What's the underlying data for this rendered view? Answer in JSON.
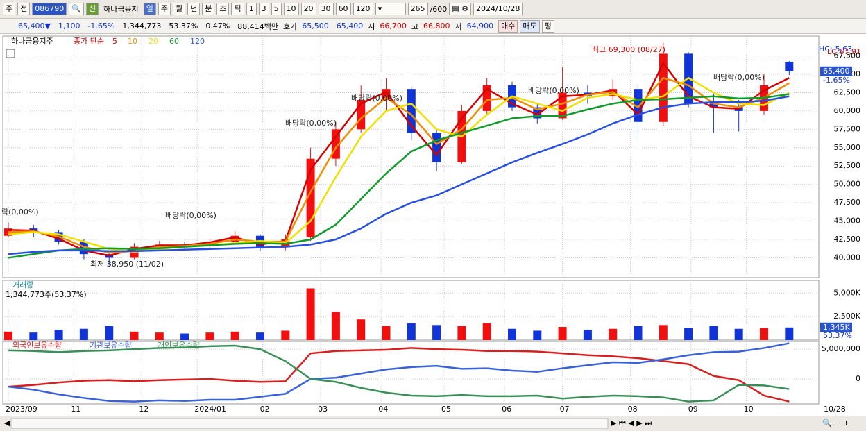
{
  "toolbar": {
    "period": "주",
    "compare": "전",
    "code": "086790",
    "badge": "신",
    "name": "하나금융지",
    "units": [
      "일",
      "주",
      "월",
      "년",
      "분",
      "초",
      "틱"
    ],
    "intervals": [
      "1",
      "3",
      "5",
      "10",
      "20",
      "30",
      "60",
      "120"
    ],
    "count": "265",
    "max": "/600",
    "date": "2024/10/28"
  },
  "quote": {
    "price": "65,400▼",
    "change": "1,100",
    "rate": "-1.65%",
    "volume": "1,344,773",
    "vol_ratio": "53.37%",
    "turnover": "0.47%",
    "amount": "88,414백만",
    "ask_label": "호가",
    "ask": "65,500",
    "bid": "65,400",
    "open_label": "시",
    "open": "66,700",
    "high_label": "고",
    "high": "66,800",
    "low_label": "저",
    "low": "64,900",
    "buy": "매수",
    "sell": "매도",
    "flat": "펑"
  },
  "chart_data": [
    {
      "type": "candlestick",
      "title": "하나금융지주",
      "legend_label": "종가 단순",
      "open": [
        43000,
        44000,
        43500,
        42200,
        40500,
        40000,
        41500,
        41800,
        41600,
        42200,
        43000,
        41500,
        42800,
        53500,
        57500,
        61500,
        63000,
        57000,
        53000,
        60000,
        63500,
        60500,
        59000,
        62500,
        62000,
        63000,
        58500,
        67800,
        61000,
        60500,
        60000,
        66700
      ],
      "high": [
        44800,
        44500,
        43800,
        42500,
        41000,
        42000,
        42300,
        42200,
        42600,
        43600,
        43200,
        43200,
        55000,
        58500,
        63500,
        64500,
        63300,
        57500,
        60800,
        64500,
        64000,
        61000,
        66000,
        63500,
        64300,
        63500,
        69300,
        68000,
        62500,
        61500,
        65000,
        66800
      ],
      "low": [
        42800,
        42800,
        41800,
        39800,
        38950,
        39800,
        41000,
        41200,
        41300,
        41900,
        41000,
        41000,
        42300,
        52500,
        57000,
        60000,
        56000,
        51800,
        52800,
        59500,
        60000,
        58300,
        58800,
        61000,
        61500,
        56200,
        58000,
        60500,
        57000,
        57200,
        59500,
        64900
      ],
      "close": [
        44000,
        43500,
        42200,
        40500,
        40000,
        41500,
        41800,
        41600,
        42200,
        43000,
        41500,
        42500,
        53500,
        57500,
        61500,
        63000,
        57000,
        53000,
        60000,
        63500,
        60500,
        59000,
        62500,
        62000,
        63000,
        58500,
        67800,
        61000,
        60500,
        60000,
        63500,
        65400
      ],
      "colors": {
        "up": "#f01010",
        "down": "#1034d8"
      },
      "series": [
        {
          "name": "5",
          "color": "#d40000",
          "values": [
            43800,
            43700,
            42600,
            41000,
            40300,
            41200,
            41700,
            41700,
            42100,
            42800,
            41800,
            42300,
            52000,
            56500,
            61000,
            62600,
            58000,
            54000,
            59000,
            63000,
            61000,
            59500,
            62000,
            62200,
            62800,
            59500,
            66500,
            62000,
            60500,
            60300,
            62800,
            64500
          ]
        },
        {
          "name": "10",
          "color": "#f08c00",
          "values": [
            43500,
            43600,
            42900,
            41500,
            40700,
            40900,
            41500,
            41600,
            41900,
            42500,
            42200,
            42200,
            49000,
            55000,
            59000,
            61800,
            59500,
            55500,
            57500,
            61500,
            61800,
            60200,
            61000,
            62200,
            62600,
            60500,
            64500,
            63500,
            61000,
            60500,
            61800,
            63800
          ]
        },
        {
          "name": "20",
          "color": "#f0e000",
          "values": [
            43200,
            43500,
            43200,
            42200,
            41200,
            40800,
            41200,
            41500,
            41700,
            42000,
            42300,
            42000,
            45000,
            51000,
            56500,
            60000,
            61000,
            57500,
            56500,
            59500,
            62000,
            61000,
            60000,
            61800,
            62300,
            61500,
            62000,
            64500,
            62500,
            61000,
            60800,
            62500
          ]
        },
        {
          "name": "60",
          "color": "#129a2a",
          "values": [
            40000,
            40500,
            41000,
            41200,
            41300,
            41200,
            41300,
            41500,
            41700,
            41900,
            42000,
            41900,
            42500,
            44500,
            48000,
            51500,
            54500,
            56000,
            57000,
            58000,
            59000,
            59300,
            59300,
            60200,
            61000,
            61500,
            61600,
            61800,
            62000,
            61700,
            61800,
            62300
          ]
        },
        {
          "name": "120",
          "color": "#2850e0",
          "values": [
            40500,
            40800,
            41000,
            41000,
            40900,
            40900,
            41000,
            41100,
            41200,
            41300,
            41400,
            41500,
            41800,
            42500,
            44000,
            46000,
            47500,
            48500,
            50000,
            51500,
            53000,
            54300,
            55500,
            56800,
            58300,
            59500,
            60500,
            61000,
            61200,
            61200,
            61400,
            62000
          ]
        }
      ],
      "ylim": [
        37300,
        70200
      ],
      "yticks": [
        {
          "value": 40000,
          "label": "40,000"
        },
        {
          "value": 42500,
          "label": "42,500"
        },
        {
          "value": 45000,
          "label": "45,000"
        },
        {
          "value": 47500,
          "label": "47,500"
        },
        {
          "value": 50000,
          "label": "50,000"
        },
        {
          "value": 52500,
          "label": "52,500"
        },
        {
          "value": 55000,
          "label": "55,000"
        },
        {
          "value": 57500,
          "label": "57,500"
        },
        {
          "value": 60000,
          "label": "60,000"
        },
        {
          "value": 62500,
          "label": "62,500"
        },
        {
          "value": 65000,
          "label": "65,000"
        },
        {
          "value": 67500,
          "label": "67,500"
        }
      ],
      "xticks": [
        {
          "value": 0,
          "label": "2023/09"
        },
        {
          "value": 2.6,
          "label": "11"
        },
        {
          "value": 5.3,
          "label": "12"
        },
        {
          "value": 7.5,
          "label": "2024/01"
        },
        {
          "value": 10.1,
          "label": "02"
        },
        {
          "value": 12.4,
          "label": "03"
        },
        {
          "value": 14.8,
          "label": "04"
        },
        {
          "value": 17.3,
          "label": "05"
        },
        {
          "value": 19.7,
          "label": "06"
        },
        {
          "value": 22,
          "label": "07"
        },
        {
          "value": 24.7,
          "label": "08"
        },
        {
          "value": 27.1,
          "label": "09"
        },
        {
          "value": 29.3,
          "label": "10"
        }
      ],
      "x_end_label": "10/28",
      "annotations": [
        "최고 69,300 (08/27)",
        "최저 38,950 (11/02)",
        "락(0,00%)",
        "배당락(0,00%)",
        "배당락(0,00%)",
        "배당락(0,00%)",
        "배당락(0,00%)",
        "배당락(0,00%)"
      ],
      "lc_label": "LC:67,91",
      "hc_label": "HC:-5,63",
      "last_label": "65,400",
      "last_rate": "-1.65%"
    },
    {
      "type": "bar",
      "title": "거래량",
      "subtitle": "1,344,773주(53,37%)",
      "values": [
        900,
        800,
        1100,
        1200,
        1500,
        900,
        800,
        700,
        800,
        900,
        800,
        1000,
        5500,
        3000,
        2200,
        1500,
        1800,
        1600,
        1500,
        1800,
        1200,
        1000,
        1400,
        1100,
        1200,
        1500,
        1600,
        1300,
        1500,
        1200,
        1300,
        1345
      ],
      "ylim": [
        0,
        6200
      ],
      "yticks": [
        {
          "value": 2500,
          "label": "2,500K"
        },
        {
          "value": 5000,
          "label": "5,000K"
        }
      ],
      "last_label": "1,345K",
      "last_rate": "53.37%"
    },
    {
      "type": "line",
      "series": [
        {
          "name": "외국인보유수량",
          "color": "#d7201e",
          "values": [
            -1300000,
            -1000000,
            -600000,
            -300000,
            -200000,
            -400000,
            -200000,
            -100000,
            0,
            -300000,
            -500000,
            -400000,
            4300000,
            4700000,
            4800000,
            4900000,
            5200000,
            5000000,
            4900000,
            4700000,
            4700000,
            4600000,
            4300000,
            4000000,
            3800000,
            3500000,
            3000000,
            2500000,
            500000,
            -200000,
            -2800000,
            -3800000
          ]
        },
        {
          "name": "기관보유수량",
          "color": "#3a62d8",
          "values": [
            -1300000,
            -1800000,
            -2600000,
            -3200000,
            -3700000,
            -3800000,
            -3600000,
            -3700000,
            -3500000,
            -3500000,
            -3000000,
            -2500000,
            0,
            200000,
            900000,
            1600000,
            2000000,
            2200000,
            1700000,
            1800000,
            1400000,
            1200000,
            1800000,
            2300000,
            2800000,
            2700000,
            3300000,
            4000000,
            4500000,
            4600000,
            5200000,
            6000000
          ]
        },
        {
          "name": "개인보유수량",
          "color": "#3a8f58",
          "values": [
            4800000,
            4700000,
            4500000,
            4700000,
            4800000,
            5000000,
            5200000,
            5300000,
            5500000,
            5600000,
            5000000,
            3000000,
            0,
            -500000,
            -1500000,
            -2300000,
            -2800000,
            -2900000,
            -2700000,
            -2900000,
            -2900000,
            -2800000,
            -3300000,
            -3000000,
            -2800000,
            -2900000,
            -3100000,
            -3800000,
            -3600000,
            -1000000,
            -1100000,
            -1700000
          ]
        }
      ],
      "ylim": [
        -4200000,
        6300000
      ],
      "yticks": [
        0,
        {
          "value": 5000000,
          "label": "5,000,000"
        }
      ]
    }
  ]
}
